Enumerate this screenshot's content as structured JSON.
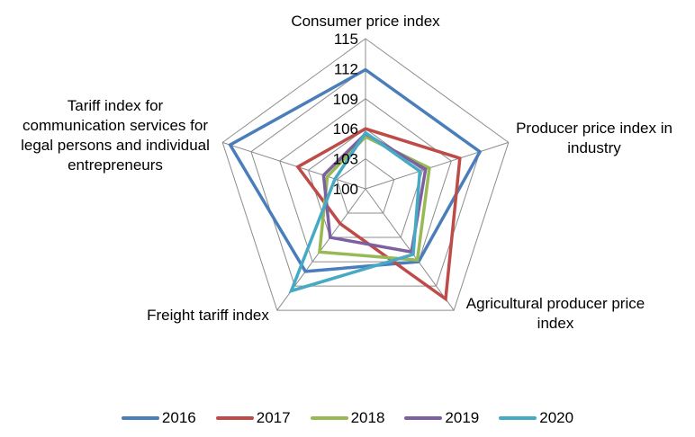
{
  "chart_data": {
    "type": "radar",
    "title": "",
    "categories": [
      "Consumer price index",
      "Producer price index in industry",
      "Agricultural producer price index",
      "Freight tariff index",
      "Tariff index for communication services for legal persons and individual entrepreneurs"
    ],
    "category_label_lines": [
      [
        "Consumer price index"
      ],
      [
        "Producer price index in",
        "industry"
      ],
      [
        "Agricultural producer price",
        "index"
      ],
      [
        "Freight tariff index"
      ],
      [
        "Tariff index for",
        "communication services for",
        "legal persons and individual",
        "entrepreneurs"
      ]
    ],
    "r_range": [
      100,
      115
    ],
    "r_ticks": [
      100,
      103,
      106,
      109,
      112,
      115
    ],
    "r_tick_labels": [
      "100",
      "103",
      "106",
      "109",
      "112",
      "115"
    ],
    "grid": true,
    "legend_position": "bottom",
    "series": [
      {
        "name": "2016",
        "color": "#4A7EBB",
        "values": [
          111.9,
          112.0,
          109.0,
          110.2,
          114.2
        ]
      },
      {
        "name": "2017",
        "color": "#BE4B48",
        "values": [
          106.0,
          109.9,
          113.6,
          104.3,
          107.1
        ]
      },
      {
        "name": "2018",
        "color": "#98B954",
        "values": [
          105.2,
          106.7,
          108.8,
          107.8,
          104.0
        ]
      },
      {
        "name": "2019",
        "color": "#7D60A0",
        "values": [
          105.5,
          106.3,
          107.8,
          106.0,
          104.4
        ]
      },
      {
        "name": "2020",
        "color": "#46AAC5",
        "values": [
          105.6,
          105.7,
          108.1,
          112.6,
          103.2
        ]
      }
    ]
  }
}
